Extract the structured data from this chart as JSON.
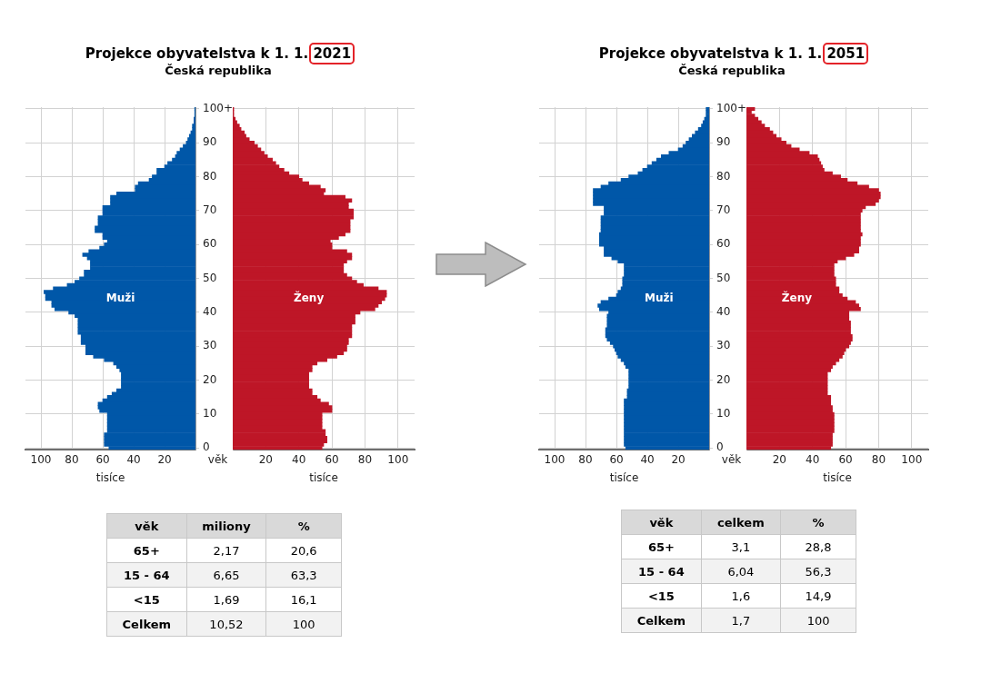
{
  "chart_data": [
    {
      "type": "bar",
      "orientation": "horizontal",
      "title": "Projekce obyvatelstva k 1. 1. 2021",
      "subtitle": "Česká republika",
      "xlabel": "tisíce",
      "ylabel": "věk",
      "xlim": [
        110,
        0
      ],
      "xticks": [
        20,
        40,
        60,
        80,
        100
      ],
      "grid": true,
      "legend": false,
      "categories": [
        "100+",
        null,
        null,
        null,
        null,
        null,
        null,
        null,
        null,
        null,
        "90",
        null,
        null,
        null,
        null,
        null,
        null,
        null,
        null,
        null,
        "80",
        null,
        null,
        null,
        null,
        null,
        null,
        null,
        null,
        null,
        "70",
        null,
        null,
        null,
        null,
        null,
        null,
        null,
        null,
        null,
        "60",
        null,
        null,
        null,
        null,
        null,
        null,
        null,
        null,
        null,
        "50",
        null,
        null,
        null,
        null,
        null,
        null,
        null,
        null,
        null,
        "40",
        null,
        null,
        null,
        null,
        null,
        null,
        null,
        null,
        null,
        "30",
        null,
        null,
        null,
        null,
        null,
        null,
        null,
        null,
        null,
        "20",
        null,
        null,
        null,
        null,
        null,
        null,
        null,
        null,
        null,
        "10",
        null,
        null,
        null,
        null,
        null,
        null,
        null,
        null,
        null,
        "0"
      ],
      "series": [
        {
          "name": "Muži",
          "color": "#0057a8",
          "values": [
            0.5,
            0.5,
            0.5,
            1,
            1,
            2,
            2,
            3,
            4,
            5,
            6,
            8,
            10,
            12,
            13,
            15,
            18,
            20,
            25,
            25,
            28,
            30,
            37,
            39,
            39,
            51,
            55,
            55,
            55,
            60,
            60,
            60,
            63,
            63,
            63,
            65,
            65,
            60,
            60,
            57,
            59,
            62,
            69,
            73,
            70,
            68,
            68,
            68,
            72,
            72,
            75,
            78,
            83,
            92,
            98,
            97,
            97,
            93,
            93,
            91,
            82,
            78,
            76,
            76,
            76,
            76,
            76,
            74,
            74,
            74,
            71,
            71,
            71,
            66,
            59,
            53,
            51,
            49,
            48,
            48,
            48,
            48,
            48,
            51,
            54,
            57,
            60,
            63,
            63,
            62,
            57,
            57,
            57,
            57,
            57,
            57,
            59,
            59,
            59,
            59,
            56
          ]
        }
      ]
    },
    {
      "type": "bar",
      "orientation": "horizontal",
      "xlabel": "tisíce",
      "xlim": [
        0,
        110
      ],
      "xticks": [
        20,
        40,
        60,
        80,
        100
      ],
      "grid": true,
      "legend": false,
      "tick_labels": "x",
      "categories": [
        null,
        null,
        null,
        null,
        null,
        null,
        null,
        null,
        null,
        null,
        null,
        null,
        null,
        null,
        null,
        null,
        null,
        null,
        null,
        null,
        null,
        null,
        null,
        null,
        null,
        null,
        null,
        null,
        null,
        null,
        null,
        null,
        null,
        null,
        null,
        null,
        null,
        null,
        null,
        null,
        null,
        null,
        null,
        null,
        null,
        null,
        null,
        null,
        null,
        null,
        null,
        null,
        null,
        null,
        null,
        null,
        null,
        null,
        null,
        null,
        null,
        null,
        null,
        null,
        null,
        null,
        null,
        null,
        null,
        null,
        null,
        null,
        null,
        null,
        null,
        null,
        null,
        null,
        null,
        null,
        null,
        null,
        null,
        null,
        null,
        null,
        null,
        null,
        null,
        null,
        null,
        null,
        null,
        null,
        null,
        null,
        null,
        null,
        null,
        null,
        null
      ],
      "series": [
        {
          "name": "Ženy",
          "color": "#be1627",
          "values": [
            0.6,
            0.6,
            0.6,
            1.5,
            2.5,
            4,
            5,
            7,
            8,
            10,
            13,
            15,
            17,
            19,
            21,
            24,
            26,
            28,
            31,
            34,
            40,
            42,
            46,
            53,
            56,
            55,
            68,
            72,
            70,
            70,
            73,
            73,
            73,
            71,
            71,
            71,
            71,
            68,
            64,
            59,
            60,
            60,
            69,
            72,
            72,
            69,
            67,
            67,
            67,
            69,
            72,
            75,
            79,
            88,
            93,
            93,
            92,
            90,
            88,
            86,
            77,
            74,
            74,
            74,
            72,
            72,
            72,
            72,
            70,
            70,
            69,
            69,
            67,
            63,
            57,
            51,
            48,
            48,
            46,
            46,
            46,
            46,
            46,
            48,
            48,
            51,
            53,
            58,
            60,
            60,
            54,
            54,
            54,
            54,
            54,
            56,
            56,
            57,
            57,
            55,
            54
          ]
        }
      ]
    },
    {
      "type": "bar",
      "orientation": "horizontal",
      "title": "Projekce obyvatelstva k 1. 1. 2051",
      "subtitle": "Česká republika",
      "xlabel": "tisíce",
      "ylabel": "věk",
      "xlim": [
        110,
        0
      ],
      "xticks": [
        20,
        40,
        60,
        80,
        100
      ],
      "grid": true,
      "legend": false,
      "categories": [
        "100+",
        null,
        null,
        null,
        null,
        null,
        null,
        null,
        null,
        null,
        "90",
        null,
        null,
        null,
        null,
        null,
        null,
        null,
        null,
        null,
        "80",
        null,
        null,
        null,
        null,
        null,
        null,
        null,
        null,
        null,
        "70",
        null,
        null,
        null,
        null,
        null,
        null,
        null,
        null,
        null,
        "60",
        null,
        null,
        null,
        null,
        null,
        null,
        null,
        null,
        null,
        "50",
        null,
        null,
        null,
        null,
        null,
        null,
        null,
        null,
        null,
        "40",
        null,
        null,
        null,
        null,
        null,
        null,
        null,
        null,
        null,
        "30",
        null,
        null,
        null,
        null,
        null,
        null,
        null,
        null,
        null,
        "20",
        null,
        null,
        null,
        null,
        null,
        null,
        null,
        null,
        null,
        "10",
        null,
        null,
        null,
        null,
        null,
        null,
        null,
        null,
        null,
        "0"
      ],
      "series": [
        {
          "name": "Muži",
          "color": "#0057a8",
          "values": [
            2,
            2,
            2,
            3,
            4,
            5,
            7,
            9,
            11,
            13,
            15,
            17,
            20,
            26,
            31,
            34,
            37,
            40,
            43,
            46,
            52,
            57,
            65,
            70,
            75,
            75,
            75,
            75,
            75,
            68,
            68,
            68,
            70,
            70,
            70,
            70,
            70,
            71,
            71,
            71,
            71,
            68,
            68,
            68,
            63,
            59,
            55,
            55,
            55,
            55,
            56,
            56,
            56,
            57,
            59,
            60,
            65,
            70,
            72,
            71,
            65,
            66,
            66,
            66,
            66,
            67,
            67,
            67,
            66,
            64,
            62,
            61,
            60,
            59,
            57,
            55,
            54,
            52,
            52,
            52,
            52,
            52,
            52,
            53,
            53,
            53,
            55,
            55,
            55,
            55,
            55,
            55,
            55,
            55,
            55,
            55,
            55,
            55,
            55,
            55,
            54
          ]
        }
      ]
    },
    {
      "type": "bar",
      "orientation": "horizontal",
      "xlabel": "tisíce",
      "xlim": [
        0,
        110
      ],
      "xticks": [
        20,
        40,
        60,
        80,
        100
      ],
      "grid": true,
      "legend": false,
      "tick_labels": "x",
      "categories": [
        null,
        null,
        null,
        null,
        null,
        null,
        null,
        null,
        null,
        null,
        null,
        null,
        null,
        null,
        null,
        null,
        null,
        null,
        null,
        null,
        null,
        null,
        null,
        null,
        null,
        null,
        null,
        null,
        null,
        null,
        null,
        null,
        null,
        null,
        null,
        null,
        null,
        null,
        null,
        null,
        null,
        null,
        null,
        null,
        null,
        null,
        null,
        null,
        null,
        null,
        null,
        null,
        null,
        null,
        null,
        null,
        null,
        null,
        null,
        null,
        null,
        null,
        null,
        null,
        null,
        null,
        null,
        null,
        null,
        null,
        null,
        null,
        null,
        null,
        null,
        null,
        null,
        null,
        null,
        null,
        null,
        null,
        null,
        null,
        null,
        null,
        null,
        null,
        null,
        null,
        null,
        null,
        null,
        null,
        null,
        null,
        null,
        null,
        null,
        null,
        null
      ],
      "series": [
        {
          "name": "Ženy",
          "color": "#be1627",
          "values": [
            5,
            3,
            5,
            7,
            9,
            11,
            14,
            16,
            18,
            21,
            24,
            27,
            32,
            38,
            43,
            44,
            45,
            46,
            47,
            52,
            57,
            61,
            67,
            74,
            80,
            81,
            81,
            80,
            78,
            72,
            70,
            69,
            69,
            69,
            69,
            69,
            69,
            70,
            69,
            69,
            69,
            68,
            68,
            65,
            60,
            55,
            53,
            53,
            53,
            53,
            54,
            54,
            54,
            56,
            56,
            58,
            61,
            66,
            68,
            69,
            62,
            62,
            62,
            63,
            63,
            63,
            63,
            64,
            64,
            63,
            62,
            60,
            59,
            58,
            56,
            54,
            52,
            51,
            49,
            49,
            49,
            49,
            49,
            49,
            49,
            51,
            51,
            51,
            52,
            52,
            53,
            53,
            53,
            53,
            53,
            53,
            52,
            52,
            52,
            52,
            51
          ]
        }
      ]
    },
    {
      "type": "other",
      "xlabel": "věk",
      "categories": [
        "65+",
        "15 - 64",
        "<15",
        "Celkem"
      ],
      "series": [
        {
          "name": "miliony",
          "values": [
            2.17,
            6.65,
            1.69,
            10.52
          ],
          "value_labels": [
            "2,17",
            "6,65",
            "1,69",
            "10,52"
          ],
          "colors": [
            "#ffffff",
            "#f2f2f2",
            "#ffffff",
            "#f2f2f2"
          ]
        },
        {
          "name": "%",
          "values": [
            20.6,
            63.3,
            16.1,
            100
          ],
          "value_labels": [
            "20,6",
            "63,3",
            "16,1",
            "100"
          ],
          "colors": [
            "#ffffff",
            "#f2f2f2",
            "#ffffff",
            "#f2f2f2"
          ]
        }
      ]
    },
    {
      "type": "other",
      "xlabel": "věk",
      "categories": [
        "65+",
        "15 - 64",
        "<15",
        "Celkem"
      ],
      "series": [
        {
          "name": "celkem",
          "values": [
            3.1,
            6.04,
            1.6,
            1.7
          ],
          "value_labels": [
            "3,1",
            "6,04",
            "1,6",
            "1,7"
          ],
          "colors": [
            "#ffffff",
            "#f2f2f2",
            "#ffffff",
            "#f2f2f2"
          ]
        },
        {
          "name": "%",
          "values": [
            28.8,
            56.3,
            14.9,
            100
          ],
          "value_labels": [
            "28,8",
            "56,3",
            "14,9",
            "100"
          ],
          "colors": [
            "#ffffff",
            "#f2f2f2",
            "#ffffff",
            "#f2f2f2"
          ]
        }
      ]
    }
  ]
}
